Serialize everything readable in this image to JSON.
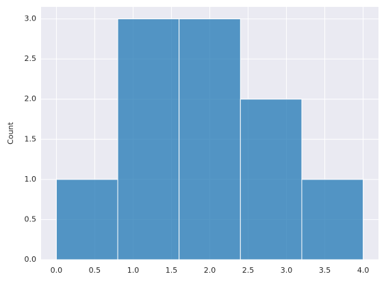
{
  "chart_data": {
    "type": "histogram",
    "bins": [
      0,
      0.8,
      1.6,
      2.4,
      3.2,
      4.0
    ],
    "counts": [
      1,
      3,
      3,
      2,
      1
    ],
    "color": "#1f77b4",
    "alpha": 0.75,
    "ylabel": "Count",
    "xlim": [
      -0.2,
      4.2
    ],
    "xticks": [
      {
        "value": 0,
        "label": "0.0"
      },
      0.5,
      {
        "value": 1,
        "label": "1.0"
      },
      1.5,
      {
        "value": 2,
        "label": "2.0"
      },
      2.5,
      {
        "value": 3,
        "label": "3.0"
      },
      3.5,
      {
        "value": 4,
        "label": "4.0"
      }
    ],
    "ylim": [
      0,
      3.15
    ],
    "yticks": [
      {
        "value": 0,
        "label": "0.0"
      },
      0.5,
      {
        "value": 1,
        "label": "1.0"
      },
      1.5,
      {
        "value": 2,
        "label": "2.0"
      },
      2.5,
      {
        "value": 3,
        "label": "3.0"
      }
    ],
    "grid": true
  }
}
